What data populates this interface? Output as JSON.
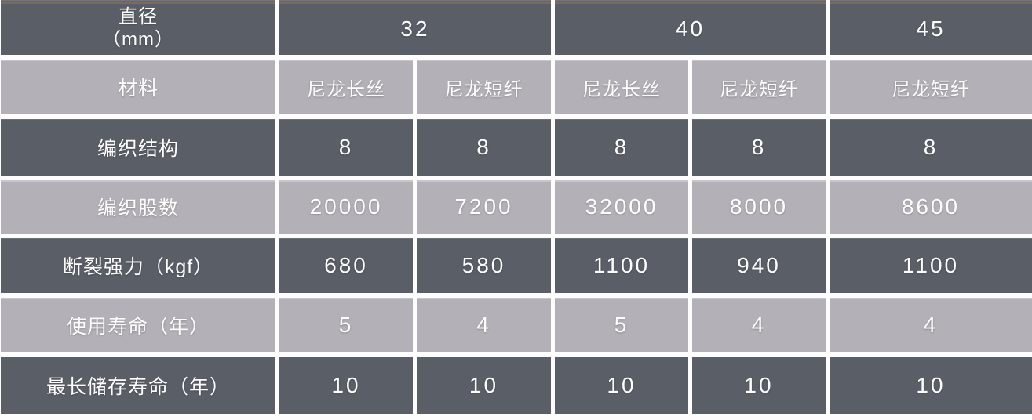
{
  "chart_data": {
    "type": "table",
    "title": "",
    "header": {
      "corner_label": "直径\n（mm）",
      "diameter_groups": [
        {
          "diameter": "32",
          "span": 2
        },
        {
          "diameter": "40",
          "span": 2
        },
        {
          "diameter": "45",
          "span": 1
        }
      ],
      "material_label": "材料",
      "materials": [
        "尼龙长丝",
        "尼龙短纤",
        "尼龙长丝",
        "尼龙短纤",
        "尼龙短纤"
      ]
    },
    "rows": [
      {
        "label": "编织结构",
        "values": [
          "8",
          "8",
          "8",
          "8",
          "8"
        ]
      },
      {
        "label": "编织股数",
        "values": [
          "20000",
          "7200",
          "32000",
          "8000",
          "8600"
        ]
      },
      {
        "label": "断裂强力（kgf）",
        "values": [
          "680",
          "580",
          "1100",
          "940",
          "1100"
        ]
      },
      {
        "label": "使用寿命（年）",
        "values": [
          "5",
          "4",
          "5",
          "4",
          "4"
        ]
      },
      {
        "label": "最长储存寿命（年）",
        "values": [
          "10",
          "10",
          "10",
          "10",
          "10"
        ]
      }
    ],
    "layout": {
      "columns": 6,
      "row_striping": [
        "dark",
        "light",
        "dark",
        "light",
        "dark",
        "light",
        "dark"
      ]
    },
    "colors": {
      "dark_row": "#5a5e66",
      "light_row": "#b3b0b7",
      "gap": "#fdfdfe",
      "text": "#fdfdfd",
      "top_edge_line": "#7c6a5f"
    }
  }
}
